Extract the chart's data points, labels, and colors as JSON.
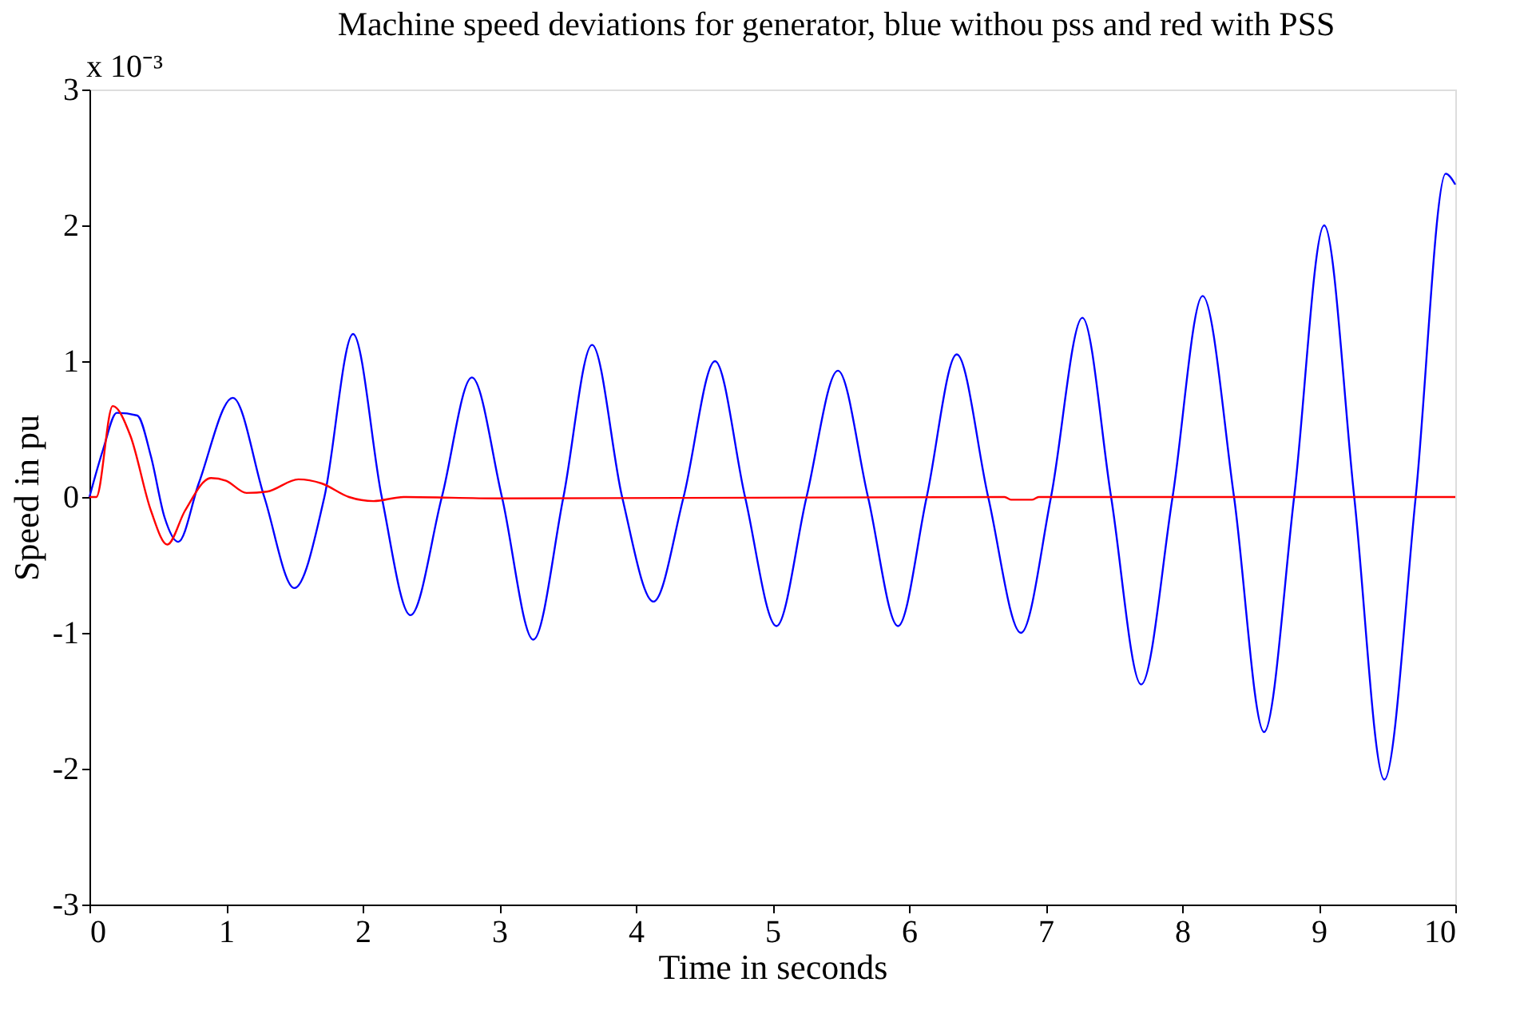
{
  "chart_data": {
    "type": "line",
    "title": "Machine speed deviations for generator, blue withou pss and red with PSS",
    "xlabel": "Time in seconds",
    "ylabel": "Speed in pu",
    "annotations": [
      "x 10⁻³"
    ],
    "xlim": [
      0,
      10
    ],
    "xticks": [
      0,
      1,
      2,
      3,
      4,
      5,
      6,
      7,
      8,
      9,
      10
    ],
    "ylim": [
      -3,
      3
    ],
    "yticks": [
      -3,
      -2,
      -1,
      0,
      1,
      2,
      3
    ],
    "grid": false,
    "legend": false,
    "series": [
      {
        "color": "#0000ff",
        "x": [
          0,
          0.1,
          0.2,
          0.35,
          0.45,
          0.55,
          0.65,
          0.8,
          1.05,
          1.28,
          1.5,
          1.72,
          1.93,
          2.14,
          2.35,
          2.58,
          2.8,
          3.02,
          3.25,
          3.47,
          3.68,
          3.9,
          4.13,
          4.35,
          4.58,
          4.8,
          5.03,
          5.25,
          5.48,
          5.7,
          5.92,
          6.13,
          6.35,
          6.58,
          6.82,
          7.04,
          7.27,
          7.48,
          7.7,
          7.93,
          8.15,
          8.38,
          8.6,
          8.82,
          9.04,
          9.26,
          9.48,
          9.71,
          9.93,
          10
        ],
        "values": [
          0,
          0.35,
          0.62,
          0.6,
          0.3,
          -0.15,
          -0.33,
          0.1,
          0.73,
          0,
          -0.67,
          0,
          1.2,
          0,
          -0.87,
          0,
          0.88,
          0,
          -1.05,
          0,
          1.12,
          0,
          -0.77,
          0,
          1.0,
          0,
          -0.95,
          0,
          0.93,
          0,
          -0.95,
          0,
          1.05,
          0,
          -1.0,
          0,
          1.32,
          0,
          -1.38,
          0,
          1.48,
          0,
          -1.73,
          0,
          2.0,
          0,
          -2.08,
          0,
          2.38,
          2.3
        ]
      },
      {
        "color": "#ff0000",
        "x": [
          0,
          0.05,
          0.17,
          0.3,
          0.45,
          0.57,
          0.7,
          0.89,
          1.0,
          1.15,
          1.3,
          1.53,
          1.7,
          1.9,
          2.08,
          2.3,
          3,
          6.7,
          6.75,
          6.9,
          6.95,
          10
        ],
        "values": [
          0,
          0,
          0.67,
          0.45,
          -0.1,
          -0.35,
          -0.1,
          0.14,
          0.12,
          0.03,
          0.04,
          0.13,
          0.1,
          0,
          -0.03,
          0,
          -0.01,
          0,
          -0.02,
          -0.02,
          0,
          0
        ]
      }
    ]
  }
}
